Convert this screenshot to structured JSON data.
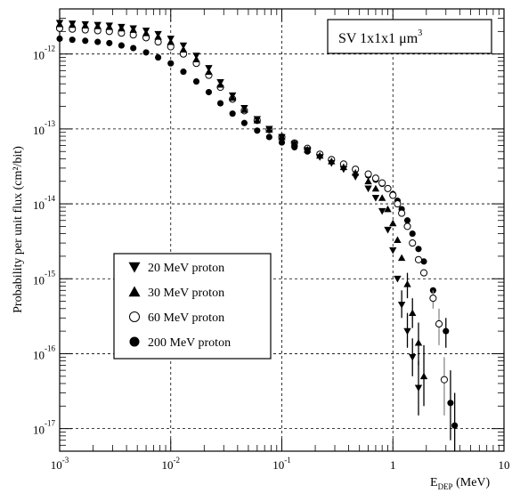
{
  "chart_data": {
    "type": "scatter",
    "title_box": {
      "prefix": "SV 1x1x1 ",
      "unit": "μm",
      "exponent": "3"
    },
    "xlabel": {
      "main": "E",
      "sub": "DEP",
      "unit": " (MeV)"
    },
    "ylabel": "Probability per unit flux (cm²/bit)",
    "xscale": "log",
    "yscale": "log",
    "xlim": [
      0.001,
      10
    ],
    "ylim": [
      5e-18,
      4e-12
    ],
    "grid": "dashed major",
    "legend_position": "left-middle",
    "x_ticks": [
      {
        "base": "10",
        "exp": "-3",
        "value": 0.001
      },
      {
        "base": "10",
        "exp": "-2",
        "value": 0.01
      },
      {
        "base": "10",
        "exp": "-1",
        "value": 0.1
      },
      {
        "base": "1",
        "exp": "",
        "value": 1
      },
      {
        "base": "10",
        "exp": "",
        "value": 10
      }
    ],
    "y_ticks": [
      {
        "base": "10",
        "exp": "-12",
        "value": 1e-12
      },
      {
        "base": "10",
        "exp": "-13",
        "value": 1e-13
      },
      {
        "base": "10",
        "exp": "-14",
        "value": 1e-14
      },
      {
        "base": "10",
        "exp": "-15",
        "value": 1e-15
      },
      {
        "base": "10",
        "exp": "-16",
        "value": 1e-16
      },
      {
        "base": "10",
        "exp": "-17",
        "value": 1e-17
      }
    ],
    "series": [
      {
        "name": "20 MeV proton",
        "marker": "triangle-down",
        "points": [
          [
            0.001,
            2.6e-12
          ],
          [
            0.0013,
            2.55e-12
          ],
          [
            0.0017,
            2.5e-12
          ],
          [
            0.0022,
            2.45e-12
          ],
          [
            0.0028,
            2.4e-12
          ],
          [
            0.0036,
            2.3e-12
          ],
          [
            0.0046,
            2.2e-12
          ],
          [
            0.006,
            2.05e-12
          ],
          [
            0.0077,
            1.85e-12
          ],
          [
            0.01,
            1.6e-12
          ],
          [
            0.013,
            1.3e-12
          ],
          [
            0.017,
            9.5e-13
          ],
          [
            0.022,
            6.5e-13
          ],
          [
            0.028,
            4.2e-13
          ],
          [
            0.036,
            2.8e-13
          ],
          [
            0.046,
            1.9e-13
          ],
          [
            0.06,
            1.35e-13
          ],
          [
            0.077,
            1e-13
          ],
          [
            0.1,
            7.8e-14
          ],
          [
            0.13,
            6.3e-14
          ],
          [
            0.17,
            5.2e-14
          ],
          [
            0.22,
            4.2e-14
          ],
          [
            0.28,
            3.5e-14
          ],
          [
            0.36,
            2.9e-14
          ],
          [
            0.46,
            2.3e-14
          ],
          [
            0.6,
            1.6e-14
          ],
          [
            0.7,
            1.2e-14
          ],
          [
            0.8,
            8e-15
          ],
          [
            0.9,
            4.5e-15
          ],
          [
            1.0,
            2.4e-15
          ],
          [
            1.1,
            1e-15
          ],
          [
            1.2,
            4.5e-16
          ],
          [
            1.35,
            2e-16
          ],
          [
            1.5,
            9e-17
          ],
          [
            1.7,
            3.5e-17
          ]
        ],
        "errors": [
          [
            1.2,
            3e-16,
            7e-16
          ],
          [
            1.35,
            1.2e-16,
            3.5e-16
          ],
          [
            1.5,
            5e-17,
            1.6e-16
          ],
          [
            1.7,
            1.5e-17,
            8e-17
          ]
        ]
      },
      {
        "name": "30 MeV proton",
        "marker": "triangle-up",
        "points": [
          [
            0.001,
            2.5e-12
          ],
          [
            0.0013,
            2.45e-12
          ],
          [
            0.0017,
            2.4e-12
          ],
          [
            0.0022,
            2.35e-12
          ],
          [
            0.0028,
            2.3e-12
          ],
          [
            0.0036,
            2.2e-12
          ],
          [
            0.0046,
            2.1e-12
          ],
          [
            0.006,
            1.9e-12
          ],
          [
            0.0077,
            1.7e-12
          ],
          [
            0.01,
            1.45e-12
          ],
          [
            0.013,
            1.15e-12
          ],
          [
            0.017,
            8.5e-13
          ],
          [
            0.022,
            5.8e-13
          ],
          [
            0.028,
            3.9e-13
          ],
          [
            0.036,
            2.6e-13
          ],
          [
            0.046,
            1.8e-13
          ],
          [
            0.06,
            1.3e-13
          ],
          [
            0.077,
            9.8e-14
          ],
          [
            0.1,
            7.8e-14
          ],
          [
            0.13,
            6.4e-14
          ],
          [
            0.17,
            5.3e-14
          ],
          [
            0.22,
            4.4e-14
          ],
          [
            0.28,
            3.7e-14
          ],
          [
            0.36,
            3.1e-14
          ],
          [
            0.46,
            2.6e-14
          ],
          [
            0.6,
            2e-14
          ],
          [
            0.7,
            1.6e-14
          ],
          [
            0.8,
            1.2e-14
          ],
          [
            0.9,
            8.5e-15
          ],
          [
            1.0,
            5.5e-15
          ],
          [
            1.1,
            3.3e-15
          ],
          [
            1.2,
            1.9e-15
          ],
          [
            1.35,
            8.5e-16
          ],
          [
            1.5,
            3.5e-16
          ],
          [
            1.7,
            1.4e-16
          ],
          [
            1.9,
            5e-17
          ]
        ],
        "errors": [
          [
            1.35,
            5.5e-16,
            1.2e-15
          ],
          [
            1.5,
            2.2e-16,
            5.5e-16
          ],
          [
            1.7,
            7e-17,
            2.6e-16
          ],
          [
            1.9,
            2e-17,
            1.3e-16
          ]
        ]
      },
      {
        "name": "60 MeV proton",
        "marker": "circle-open",
        "points": [
          [
            0.001,
            2.2e-12
          ],
          [
            0.0013,
            2.15e-12
          ],
          [
            0.0017,
            2.1e-12
          ],
          [
            0.0022,
            2.05e-12
          ],
          [
            0.0028,
            2e-12
          ],
          [
            0.0036,
            1.9e-12
          ],
          [
            0.0046,
            1.8e-12
          ],
          [
            0.006,
            1.65e-12
          ],
          [
            0.0077,
            1.45e-12
          ],
          [
            0.01,
            1.25e-12
          ],
          [
            0.013,
            1e-12
          ],
          [
            0.017,
            7.5e-13
          ],
          [
            0.022,
            5.2e-13
          ],
          [
            0.028,
            3.6e-13
          ],
          [
            0.036,
            2.5e-13
          ],
          [
            0.046,
            1.75e-13
          ],
          [
            0.06,
            1.3e-13
          ],
          [
            0.077,
            9.8e-14
          ],
          [
            0.1,
            7.8e-14
          ],
          [
            0.13,
            6.5e-14
          ],
          [
            0.17,
            5.5e-14
          ],
          [
            0.22,
            4.6e-14
          ],
          [
            0.28,
            3.9e-14
          ],
          [
            0.36,
            3.4e-14
          ],
          [
            0.46,
            2.9e-14
          ],
          [
            0.6,
            2.5e-14
          ],
          [
            0.7,
            2.2e-14
          ],
          [
            0.8,
            1.9e-14
          ],
          [
            0.9,
            1.6e-14
          ],
          [
            1.0,
            1.3e-14
          ],
          [
            1.1,
            1e-14
          ],
          [
            1.2,
            7.5e-15
          ],
          [
            1.35,
            5e-15
          ],
          [
            1.5,
            3e-15
          ],
          [
            1.7,
            1.8e-15
          ],
          [
            1.9,
            1.2e-15
          ],
          [
            2.3,
            5.5e-16
          ],
          [
            2.6,
            2.5e-16
          ],
          [
            2.9,
            4.5e-17
          ]
        ],
        "errors": [
          [
            2.3,
            4e-16,
            7e-16
          ],
          [
            2.6,
            1.3e-16,
            4e-16
          ],
          [
            2.9,
            1.5e-17,
            9e-17
          ]
        ]
      },
      {
        "name": "200 MeV proton",
        "marker": "circle-filled",
        "points": [
          [
            0.001,
            1.6e-12
          ],
          [
            0.0013,
            1.55e-12
          ],
          [
            0.0017,
            1.5e-12
          ],
          [
            0.0022,
            1.45e-12
          ],
          [
            0.0028,
            1.4e-12
          ],
          [
            0.0036,
            1.3e-12
          ],
          [
            0.0046,
            1.2e-12
          ],
          [
            0.006,
            1.05e-12
          ],
          [
            0.0077,
            9e-13
          ],
          [
            0.01,
            7.5e-13
          ],
          [
            0.013,
            5.8e-13
          ],
          [
            0.017,
            4.3e-13
          ],
          [
            0.022,
            3.1e-13
          ],
          [
            0.028,
            2.2e-13
          ],
          [
            0.036,
            1.6e-13
          ],
          [
            0.046,
            1.2e-13
          ],
          [
            0.06,
            9.5e-14
          ],
          [
            0.077,
            7.8e-14
          ],
          [
            0.1,
            6.6e-14
          ],
          [
            0.13,
            5.7e-14
          ],
          [
            0.17,
            5e-14
          ],
          [
            0.22,
            4.4e-14
          ],
          [
            0.28,
            3.8e-14
          ],
          [
            0.36,
            3.3e-14
          ],
          [
            0.46,
            2.8e-14
          ],
          [
            0.6,
            2.4e-14
          ],
          [
            0.7,
            2.1e-14
          ],
          [
            0.8,
            1.85e-14
          ],
          [
            0.9,
            1.6e-14
          ],
          [
            1.0,
            1.35e-14
          ],
          [
            1.1,
            1.1e-14
          ],
          [
            1.2,
            8.5e-15
          ],
          [
            1.35,
            6e-15
          ],
          [
            1.5,
            4e-15
          ],
          [
            1.7,
            2.5e-15
          ],
          [
            1.9,
            1.7e-15
          ],
          [
            2.3,
            7e-16
          ],
          [
            3.0,
            2e-16
          ],
          [
            3.3,
            2.2e-17
          ],
          [
            3.6,
            1.1e-17
          ]
        ],
        "errors": [
          [
            3.0,
            1.2e-16,
            3e-16
          ],
          [
            3.3,
            7e-18,
            6e-17
          ],
          [
            3.6,
            5e-18,
            3e-17
          ]
        ]
      }
    ]
  }
}
